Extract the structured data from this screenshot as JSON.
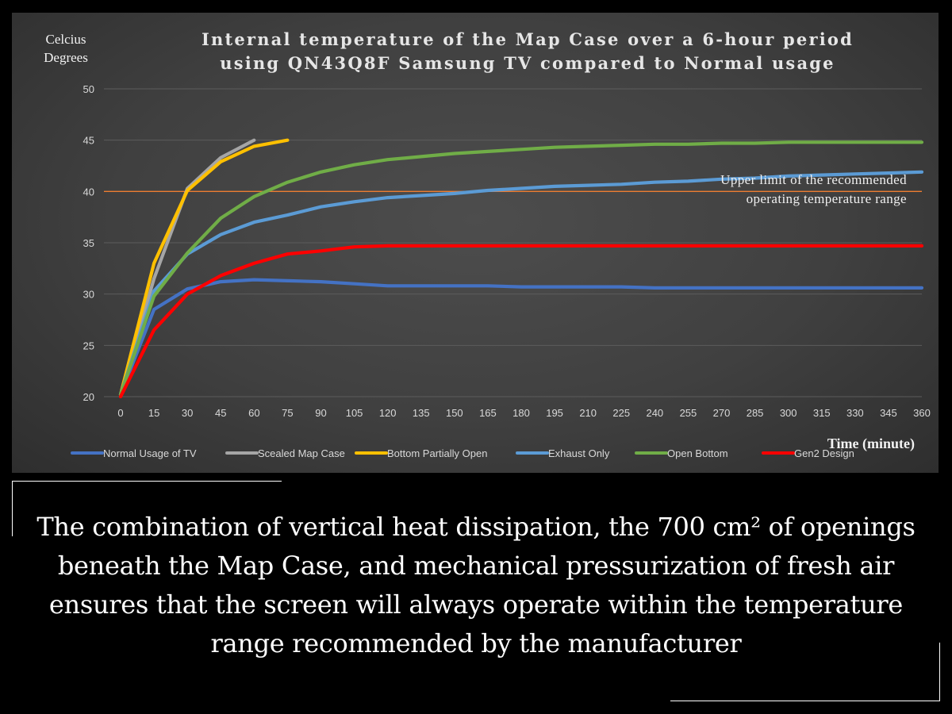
{
  "chart_data": {
    "type": "line",
    "title_lines": [
      "Internal temperature of the Map Case over a 6-hour period",
      "using QN43Q8F Samsung TV compared to Normal usage"
    ],
    "ylabel_lines": [
      "Celcius",
      "Degrees"
    ],
    "xlabel": "Time (minute)",
    "ylim": [
      20,
      50
    ],
    "yticks": [
      20,
      25,
      30,
      35,
      40,
      45,
      50
    ],
    "xlim": [
      0,
      360
    ],
    "xticks": [
      0,
      15,
      30,
      45,
      60,
      75,
      90,
      105,
      120,
      135,
      150,
      165,
      180,
      195,
      210,
      225,
      240,
      255,
      270,
      285,
      300,
      315,
      330,
      345,
      360
    ],
    "grid": "horizontal",
    "legend_position": "bottom",
    "reference_line": {
      "y": 40,
      "color": "#ed7d31",
      "label_lines": [
        "Upper limit of the recommended",
        "operating temperature range"
      ]
    },
    "series": [
      {
        "name": "Normal Usage of TV",
        "color": "#4472c4",
        "x": [
          0,
          15,
          30,
          45,
          60,
          75,
          90,
          105,
          120,
          135,
          150,
          165,
          180,
          195,
          210,
          225,
          240,
          255,
          270,
          285,
          300,
          315,
          330,
          345,
          360
        ],
        "values": [
          20.2,
          28.5,
          30.5,
          31.2,
          31.4,
          31.3,
          31.2,
          31.0,
          30.8,
          30.8,
          30.8,
          30.8,
          30.7,
          30.7,
          30.7,
          30.7,
          30.6,
          30.6,
          30.6,
          30.6,
          30.6,
          30.6,
          30.6,
          30.6,
          30.6
        ]
      },
      {
        "name": "Scealed Map Case",
        "color": "#a5a5a5",
        "x": [
          0,
          15,
          30,
          45,
          60
        ],
        "values": [
          20.2,
          31.5,
          40.3,
          43.3,
          45.0
        ]
      },
      {
        "name": "Bottom Partially Open",
        "color": "#ffc000",
        "x": [
          0,
          15,
          30,
          45,
          60,
          75
        ],
        "values": [
          20.2,
          33.0,
          40.1,
          42.9,
          44.4,
          45.0
        ]
      },
      {
        "name": "Exhaust Only",
        "color": "#5b9bd5",
        "x": [
          0,
          15,
          30,
          45,
          60,
          75,
          90,
          105,
          120,
          135,
          150,
          165,
          180,
          195,
          210,
          225,
          240,
          255,
          270,
          285,
          300,
          315,
          330,
          345,
          360
        ],
        "values": [
          20.2,
          30.3,
          33.9,
          35.8,
          37.0,
          37.7,
          38.5,
          39.0,
          39.4,
          39.6,
          39.8,
          40.1,
          40.3,
          40.5,
          40.6,
          40.7,
          40.9,
          41.0,
          41.2,
          41.3,
          41.5,
          41.6,
          41.7,
          41.8,
          41.9
        ]
      },
      {
        "name": "Open Bottom",
        "color": "#70ad47",
        "x": [
          0,
          15,
          30,
          45,
          60,
          75,
          90,
          105,
          120,
          135,
          150,
          165,
          180,
          195,
          210,
          225,
          240,
          255,
          270,
          285,
          300,
          315,
          330,
          345,
          360
        ],
        "values": [
          20.2,
          29.8,
          34.0,
          37.4,
          39.5,
          40.9,
          41.9,
          42.6,
          43.1,
          43.4,
          43.7,
          43.9,
          44.1,
          44.3,
          44.4,
          44.5,
          44.6,
          44.6,
          44.7,
          44.7,
          44.8,
          44.8,
          44.8,
          44.8,
          44.8
        ]
      },
      {
        "name": "Gen2 Design",
        "color": "#ff0000",
        "x": [
          0,
          15,
          30,
          45,
          60,
          75,
          90,
          105,
          120,
          135,
          150,
          165,
          180,
          195,
          210,
          225,
          240,
          255,
          270,
          285,
          300,
          315,
          330,
          345,
          360
        ],
        "values": [
          20.0,
          26.5,
          30.0,
          31.8,
          33.0,
          33.9,
          34.2,
          34.6,
          34.7,
          34.7,
          34.7,
          34.7,
          34.7,
          34.7,
          34.7,
          34.7,
          34.7,
          34.7,
          34.7,
          34.7,
          34.7,
          34.7,
          34.7,
          34.7,
          34.7
        ]
      }
    ]
  },
  "caption": "The combination of vertical heat dissipation, the 700 cm² of openings beneath the Map Case, and mechanical pressurization of fresh air ensures that the screen will always operate within the temperature range recommended by the manufacturer"
}
